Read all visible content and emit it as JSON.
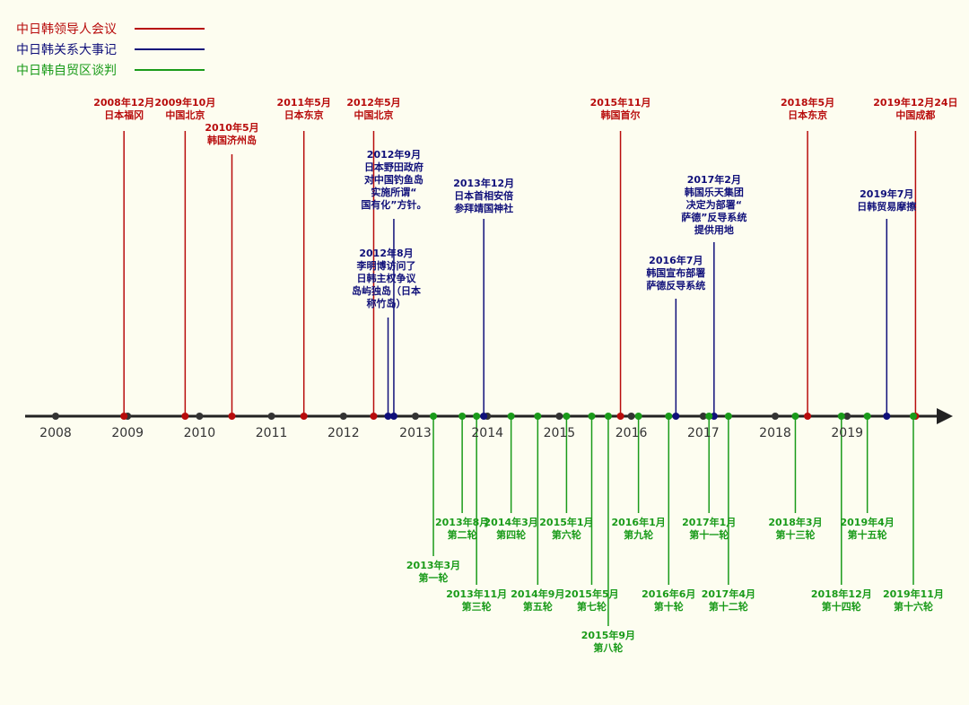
{
  "colors": {
    "summit": "#b80c0c",
    "relations": "#10107a",
    "fta": "#1a9b1a",
    "axis": "#222222",
    "year_tick": "#333333"
  },
  "legend": [
    {
      "label": "中日韩领导人会议",
      "color_key": "summit"
    },
    {
      "label": "中日韩关系大事记",
      "color_key": "relations"
    },
    {
      "label": "中日韩自贸区谈判",
      "color_key": "fta"
    }
  ],
  "timeline": {
    "start_year": 2008,
    "end_year": 2019,
    "years": [
      "2008",
      "2009",
      "2010",
      "2011",
      "2012",
      "2013",
      "2014",
      "2015",
      "2016",
      "2017",
      "2018",
      "2019"
    ]
  },
  "events": [
    {
      "group": "summit",
      "date": 2008.95,
      "label_lines": [
        "2008年12月",
        "日本福冈"
      ],
      "side": "up",
      "tier": "high"
    },
    {
      "group": "summit",
      "date": 2009.8,
      "label_lines": [
        "2009年10月",
        "中国北京"
      ],
      "side": "up",
      "tier": "high"
    },
    {
      "group": "summit",
      "date": 2010.45,
      "label_lines": [
        "2010年5月",
        "韩国济州岛"
      ],
      "side": "up",
      "tier": "mid"
    },
    {
      "group": "summit",
      "date": 2011.45,
      "label_lines": [
        "2011年5月",
        "日本东京"
      ],
      "side": "up",
      "tier": "high"
    },
    {
      "group": "summit",
      "date": 2012.42,
      "label_lines": [
        "2012年5月",
        "中国北京"
      ],
      "side": "up",
      "tier": "high"
    },
    {
      "group": "summit",
      "date": 2015.85,
      "label_lines": [
        "2015年11月",
        "韩国首尔"
      ],
      "side": "up",
      "tier": "high"
    },
    {
      "group": "summit",
      "date": 2018.45,
      "label_lines": [
        "2018年5月",
        "日本东京"
      ],
      "side": "up",
      "tier": "high"
    },
    {
      "group": "summit",
      "date": 2019.95,
      "label_lines": [
        "2019年12月24日",
        "中国成都"
      ],
      "side": "up",
      "tier": "high"
    },
    {
      "group": "relations",
      "date": 2012.62,
      "label_lines": [
        "2012年8月",
        "李明博访问了",
        "日韩主权争议",
        "岛屿独岛（日本",
        "称竹岛）"
      ],
      "side": "up",
      "tier": "r1"
    },
    {
      "group": "relations",
      "date": 2012.7,
      "label_lines": [
        "2012年9月",
        "日本野田政府",
        "对中国钓鱼岛",
        "实施所谓“",
        "国有化”方针。"
      ],
      "side": "up",
      "tier": "r2"
    },
    {
      "group": "relations",
      "date": 2013.95,
      "label_lines": [
        "2013年12月",
        "日本首相安倍",
        "参拜靖国神社"
      ],
      "side": "up",
      "tier": "r3"
    },
    {
      "group": "relations",
      "date": 2016.62,
      "label_lines": [
        "2016年7月",
        "韩国宣布部署",
        "萨德反导系统"
      ],
      "side": "up",
      "tier": "r4"
    },
    {
      "group": "relations",
      "date": 2017.15,
      "label_lines": [
        "2017年2月",
        "韩国乐天集团",
        "决定为部署“",
        "萨德”反导系统",
        "提供用地"
      ],
      "side": "up",
      "tier": "r5"
    },
    {
      "group": "relations",
      "date": 2019.55,
      "label_lines": [
        "2019年7月",
        "日韩贸易摩擦"
      ],
      "side": "up",
      "tier": "r6"
    },
    {
      "group": "fta",
      "date": 2013.25,
      "label_lines": [
        "2013年3月",
        "第一轮"
      ],
      "side": "down",
      "tier": "d2"
    },
    {
      "group": "fta",
      "date": 2013.65,
      "label_lines": [
        "2013年8月",
        "第二轮"
      ],
      "side": "down",
      "tier": "d1"
    },
    {
      "group": "fta",
      "date": 2013.85,
      "label_lines": [
        "2013年11月",
        "第三轮"
      ],
      "side": "down",
      "tier": "d3"
    },
    {
      "group": "fta",
      "date": 2014.33,
      "label_lines": [
        "2014年3月",
        "第四轮"
      ],
      "side": "down",
      "tier": "d1"
    },
    {
      "group": "fta",
      "date": 2014.7,
      "label_lines": [
        "2014年9月",
        "第五轮"
      ],
      "side": "down",
      "tier": "d3"
    },
    {
      "group": "fta",
      "date": 2015.1,
      "label_lines": [
        "2015年1月",
        "第六轮"
      ],
      "side": "down",
      "tier": "d1"
    },
    {
      "group": "fta",
      "date": 2015.45,
      "label_lines": [
        "2015年5月",
        "第七轮"
      ],
      "side": "down",
      "tier": "d3"
    },
    {
      "group": "fta",
      "date": 2015.68,
      "label_lines": [
        "2015年9月",
        "第八轮"
      ],
      "side": "down",
      "tier": "d4"
    },
    {
      "group": "fta",
      "date": 2016.1,
      "label_lines": [
        "2016年1月",
        "第九轮"
      ],
      "side": "down",
      "tier": "d1"
    },
    {
      "group": "fta",
      "date": 2016.52,
      "label_lines": [
        "2016年6月",
        "第十轮"
      ],
      "side": "down",
      "tier": "d3"
    },
    {
      "group": "fta",
      "date": 2017.08,
      "label_lines": [
        "2017年1月",
        "第十一轮"
      ],
      "side": "down",
      "tier": "d1"
    },
    {
      "group": "fta",
      "date": 2017.35,
      "label_lines": [
        "2017年4月",
        "第十二轮"
      ],
      "side": "down",
      "tier": "d3"
    },
    {
      "group": "fta",
      "date": 2018.28,
      "label_lines": [
        "2018年3月",
        "第十三轮"
      ],
      "side": "down",
      "tier": "d1"
    },
    {
      "group": "fta",
      "date": 2018.92,
      "label_lines": [
        "2018年12月",
        "第十四轮"
      ],
      "side": "down",
      "tier": "d3"
    },
    {
      "group": "fta",
      "date": 2019.28,
      "label_lines": [
        "2019年4月",
        "第十五轮"
      ],
      "side": "down",
      "tier": "d1"
    },
    {
      "group": "fta",
      "date": 2019.92,
      "label_lines": [
        "2019年11月",
        "第十六轮"
      ],
      "side": "down",
      "tier": "d3"
    }
  ]
}
